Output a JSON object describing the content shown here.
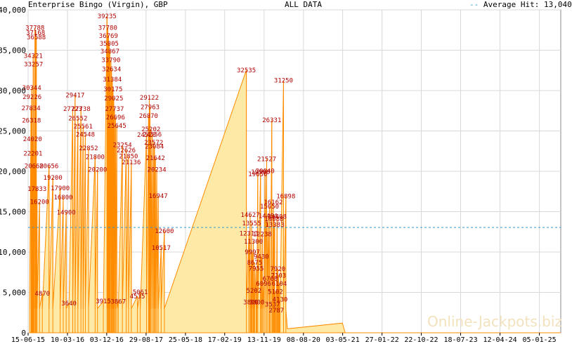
{
  "header": {
    "title": "Enterprise Bingo (Virgin), GBP",
    "subtitle": "ALL DATA",
    "legend_label": "Average Hit: 13,040"
  },
  "watermark": "Online-Jackpots.biz",
  "colors": {
    "area_fill": "#ffe9a6",
    "line": "#ff8c00",
    "label": "#b00000",
    "average": "#3399cc",
    "grid": "#d8d8d8"
  },
  "chart_data": {
    "type": "area",
    "title": "Enterprise Bingo (Virgin), GBP",
    "subtitle": "ALL DATA",
    "xlabel": "",
    "ylabel": "",
    "x_axis": "date",
    "xlim": [
      "2015-06-15",
      "2025-06-01"
    ],
    "ylim": [
      0,
      40000
    ],
    "yticks": [
      0,
      5000,
      10000,
      15000,
      20000,
      25000,
      30000,
      35000,
      40000
    ],
    "ytick_labels": [
      "0",
      "5,000",
      "10,000",
      "15,000",
      "20,000",
      "25,000",
      "30,000",
      "35,000",
      "40,000"
    ],
    "xtick_dates": [
      "2015-06-15",
      "2016-03-10",
      "2016-12-03",
      "2017-08-29",
      "2018-05-25",
      "2019-02-17",
      "2019-11-13",
      "2020-08-08",
      "2021-05-03",
      "2022-01-27",
      "2022-10-22",
      "2023-07-18",
      "2024-04-12",
      "2025-01-06"
    ],
    "xtick_labels": [
      "15-06-15",
      "10-03-16",
      "03-12-16",
      "29-08-17",
      "25-05-18",
      "17-02-19",
      "13-11-19",
      "08-08-20",
      "03-05-21",
      "27-01-22",
      "22-10-22",
      "18-07-23",
      "12-04-24",
      "05-01-25"
    ],
    "grid": true,
    "average": 13040,
    "legend": "top-right",
    "series": [
      {
        "peaks": [
          {
            "x": "2015-08-01",
            "y": 37788
          },
          {
            "x": "2015-08-05",
            "y": 37168
          },
          {
            "x": "2015-08-10",
            "y": 36588
          },
          {
            "x": "2015-07-20",
            "y": 34321
          },
          {
            "x": "2015-07-22",
            "y": 33257
          },
          {
            "x": "2015-07-10",
            "y": 30344
          },
          {
            "x": "2015-07-12",
            "y": 29226
          },
          {
            "x": "2015-07-05",
            "y": 27834
          },
          {
            "x": "2015-07-08",
            "y": 26318
          },
          {
            "x": "2015-07-15",
            "y": 24020
          },
          {
            "x": "2015-07-18",
            "y": 22201
          },
          {
            "x": "2015-07-25",
            "y": 20668
          },
          {
            "x": "2015-08-15",
            "y": 17833
          },
          {
            "x": "2015-09-01",
            "y": 16200
          },
          {
            "x": "2015-09-20",
            "y": 4870
          },
          {
            "x": "2015-11-05",
            "y": 20656
          },
          {
            "x": "2015-12-01",
            "y": 19200
          },
          {
            "x": "2016-01-20",
            "y": 17900
          },
          {
            "x": "2016-02-10",
            "y": 16800
          },
          {
            "x": "2016-03-01",
            "y": 14900
          },
          {
            "x": "2016-03-20",
            "y": 3640
          },
          {
            "x": "2016-05-01",
            "y": 29417
          },
          {
            "x": "2016-04-15",
            "y": 27723
          },
          {
            "x": "2016-05-20",
            "y": 26552
          },
          {
            "x": "2016-06-10",
            "y": 27738
          },
          {
            "x": "2016-06-25",
            "y": 25561
          },
          {
            "x": "2016-07-10",
            "y": 24548
          },
          {
            "x": "2016-08-01",
            "y": 22852
          },
          {
            "x": "2016-09-15",
            "y": 21800
          },
          {
            "x": "2016-10-01",
            "y": 20200
          },
          {
            "x": "2016-12-05",
            "y": 39235
          },
          {
            "x": "2016-12-10",
            "y": 37780
          },
          {
            "x": "2016-12-15",
            "y": 36769
          },
          {
            "x": "2016-12-20",
            "y": 35805
          },
          {
            "x": "2016-12-25",
            "y": 34867
          },
          {
            "x": "2017-01-01",
            "y": 33790
          },
          {
            "x": "2017-01-05",
            "y": 32634
          },
          {
            "x": "2017-01-10",
            "y": 31384
          },
          {
            "x": "2017-01-15",
            "y": 30175
          },
          {
            "x": "2017-01-20",
            "y": 29025
          },
          {
            "x": "2017-01-25",
            "y": 27737
          },
          {
            "x": "2017-02-01",
            "y": 26696
          },
          {
            "x": "2017-02-10",
            "y": 25645
          },
          {
            "x": "2016-11-10",
            "y": 3915
          },
          {
            "x": "2017-02-20",
            "y": 3867
          },
          {
            "x": "2017-03-20",
            "y": 23254
          },
          {
            "x": "2017-04-15",
            "y": 22626
          },
          {
            "x": "2017-05-01",
            "y": 21850
          },
          {
            "x": "2017-05-20",
            "y": 21136
          },
          {
            "x": "2017-07-01",
            "y": 4535
          },
          {
            "x": "2017-07-20",
            "y": 5061
          },
          {
            "x": "2017-09-20",
            "y": 29122
          },
          {
            "x": "2017-09-25",
            "y": 27963
          },
          {
            "x": "2017-09-15",
            "y": 26870
          },
          {
            "x": "2017-10-01",
            "y": 25202
          },
          {
            "x": "2017-10-10",
            "y": 24556
          },
          {
            "x": "2017-09-01",
            "y": 24520
          },
          {
            "x": "2017-10-20",
            "y": 23572
          },
          {
            "x": "2017-10-25",
            "y": 23084
          },
          {
            "x": "2017-11-01",
            "y": 21642
          },
          {
            "x": "2017-11-10",
            "y": 20234
          },
          {
            "x": "2017-11-20",
            "y": 16947
          },
          {
            "x": "2017-12-10",
            "y": 10517
          },
          {
            "x": "2018-01-01",
            "y": 12600
          },
          {
            "x": "2019-07-15",
            "y": 32535
          },
          {
            "x": "2019-08-10",
            "y": 14627
          },
          {
            "x": "2019-08-20",
            "y": 13555
          },
          {
            "x": "2019-08-01",
            "y": 12313
          },
          {
            "x": "2019-09-01",
            "y": 11300
          },
          {
            "x": "2019-08-25",
            "y": 9997
          },
          {
            "x": "2019-09-10",
            "y": 8675
          },
          {
            "x": "2019-09-20",
            "y": 7955
          },
          {
            "x": "2019-09-05",
            "y": 5202
          },
          {
            "x": "2019-08-15",
            "y": 3800
          },
          {
            "x": "2019-09-25",
            "y": 3800
          },
          {
            "x": "2019-10-01",
            "y": 19650
          },
          {
            "x": "2019-10-20",
            "y": 19900
          },
          {
            "x": "2019-11-20",
            "y": 20040
          },
          {
            "x": "2019-12-01",
            "y": 21527
          },
          {
            "x": "2020-01-05",
            "y": 26331
          },
          {
            "x": "2019-11-01",
            "y": 12238
          },
          {
            "x": "2019-12-10",
            "y": 14464
          },
          {
            "x": "2019-12-20",
            "y": 15650
          },
          {
            "x": "2020-01-15",
            "y": 16162
          },
          {
            "x": "2019-10-25",
            "y": 9430
          },
          {
            "x": "2020-01-20",
            "y": 14088
          },
          {
            "x": "2020-01-25",
            "y": 13383
          },
          {
            "x": "2020-02-10",
            "y": 14408
          },
          {
            "x": "2019-11-10",
            "y": 6096
          },
          {
            "x": "2019-12-25",
            "y": 6700
          },
          {
            "x": "2020-01-30",
            "y": 5102
          },
          {
            "x": "2020-02-15",
            "y": 7920
          },
          {
            "x": "2020-02-20",
            "y": 7103
          },
          {
            "x": "2020-02-25",
            "y": 6104
          },
          {
            "x": "2020-01-10",
            "y": 3537
          },
          {
            "x": "2020-03-01",
            "y": 4130
          },
          {
            "x": "2020-02-05",
            "y": 2787
          },
          {
            "x": "2020-03-25",
            "y": 31250
          },
          {
            "x": "2020-04-10",
            "y": 16898
          }
        ]
      }
    ]
  }
}
